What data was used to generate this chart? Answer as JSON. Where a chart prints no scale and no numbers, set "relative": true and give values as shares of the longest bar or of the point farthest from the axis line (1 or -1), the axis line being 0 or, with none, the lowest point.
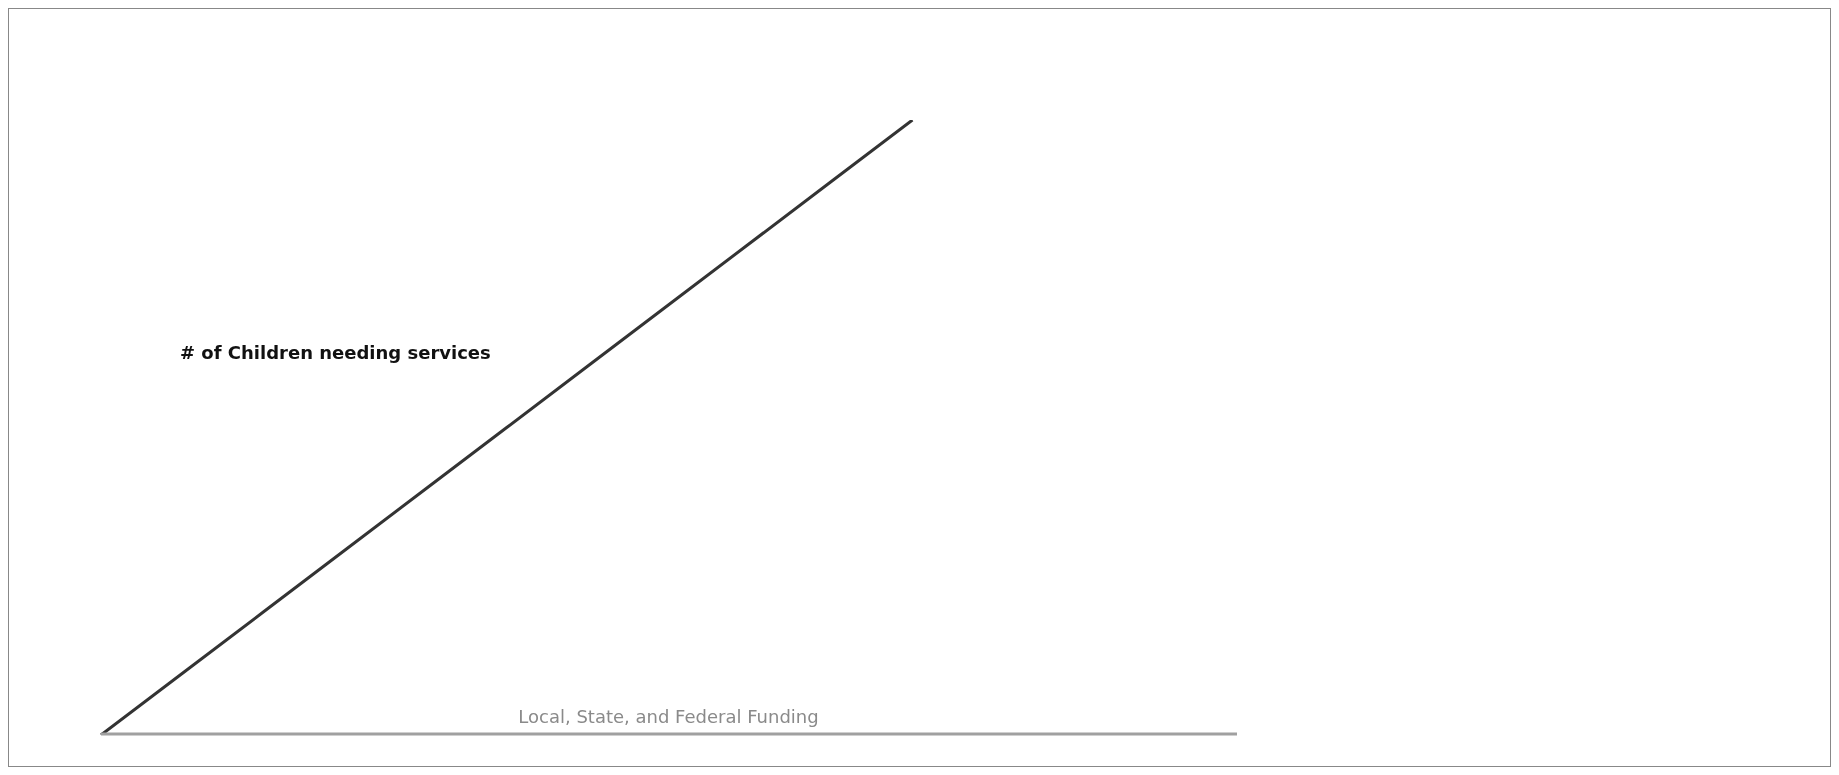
{
  "chart_data": {
    "type": "line",
    "relative": true,
    "categories": [
      null,
      null,
      null,
      null,
      null,
      null,
      null,
      null,
      null,
      null,
      null,
      null,
      null,
      null,
      null
    ],
    "series": [
      {
        "name": "# of Children needing services",
        "color": "#333333",
        "values": [
          0,
          0.1,
          0.2,
          0.3,
          0.4,
          0.5,
          0.6,
          0.7,
          0.8,
          0.9,
          1,
          null,
          null,
          null,
          null
        ]
      },
      {
        "name": "Local, State, and Federal Funding",
        "color": "#a0a0a0",
        "values": [
          0,
          0,
          0,
          0,
          0,
          0,
          0,
          0,
          0,
          0,
          0,
          0,
          0,
          0,
          0
        ]
      }
    ],
    "legend": false,
    "grid": false,
    "marker": "none",
    "line_style": "solid"
  }
}
